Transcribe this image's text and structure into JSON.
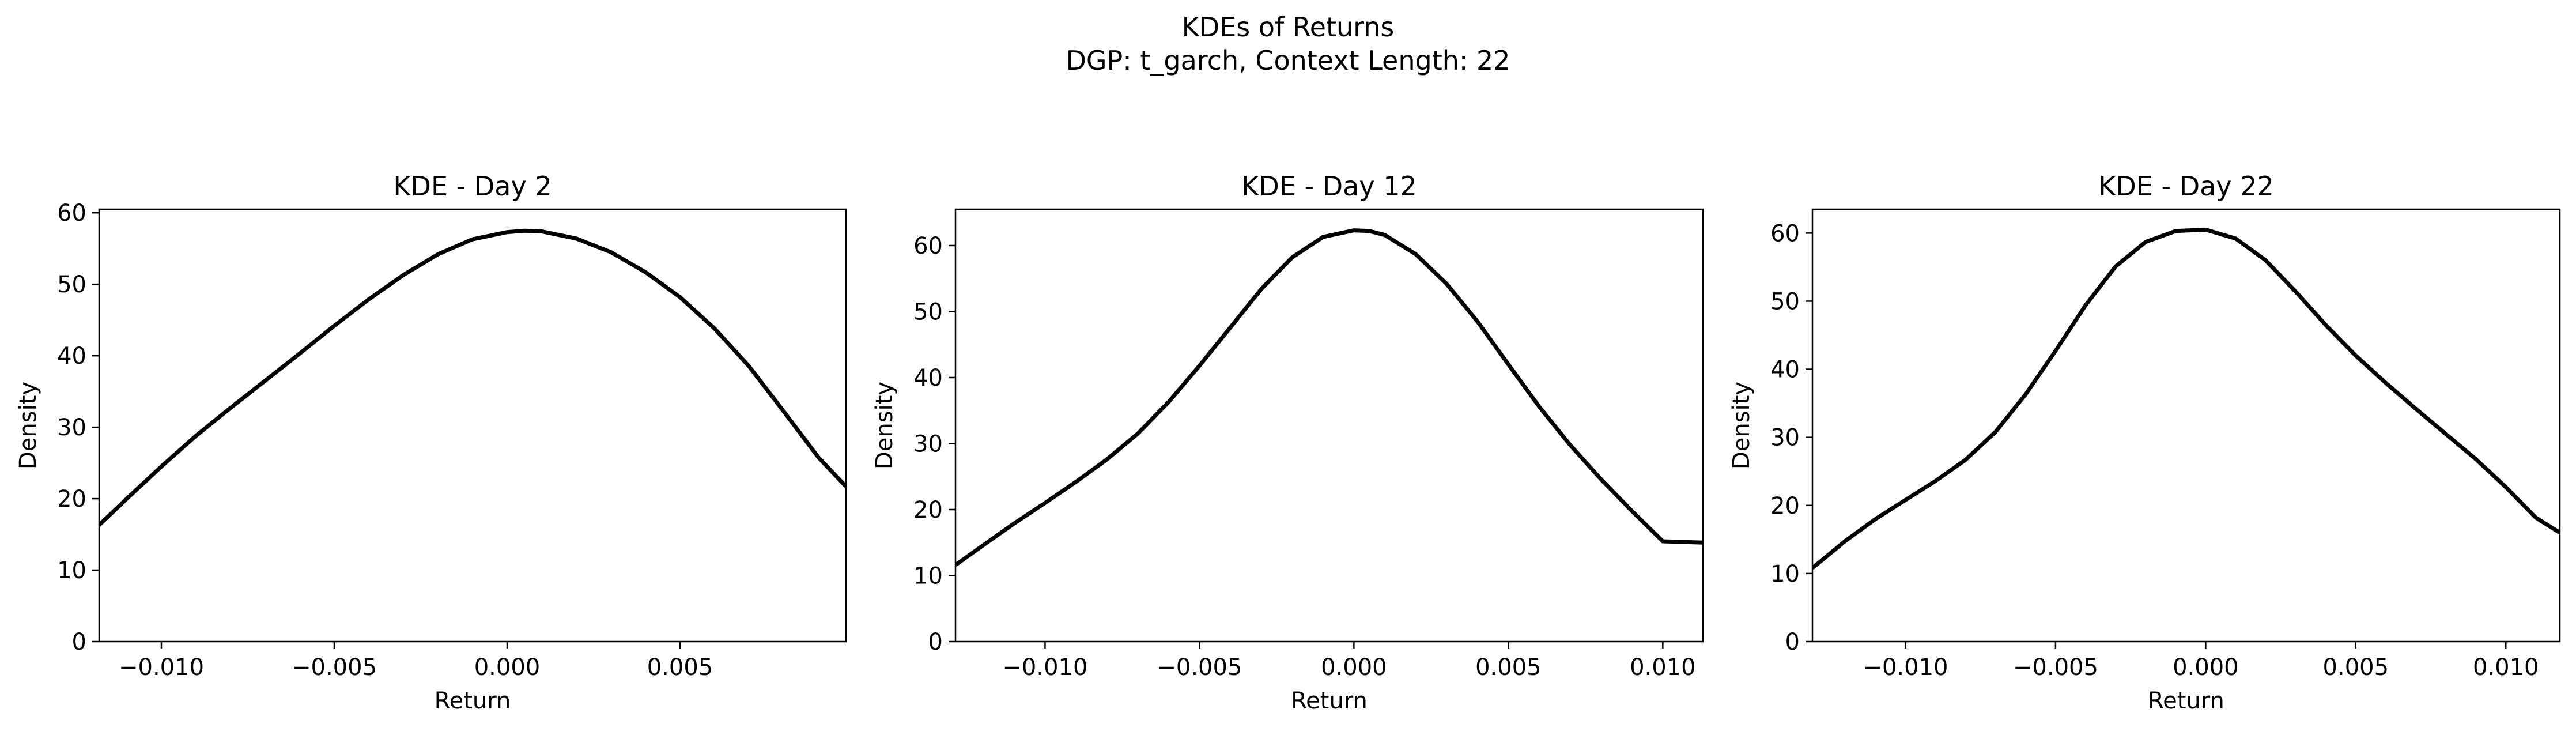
{
  "figure": {
    "suptitle_line1": "KDEs of Returns",
    "suptitle_line2": "DGP: t_garch, Context Length: 22"
  },
  "style": {
    "line_color": "#000000",
    "axis_color": "#000000",
    "background": "#ffffff"
  },
  "chart_data": [
    {
      "type": "line",
      "title": "KDE - Day 2",
      "xlabel": "Return",
      "ylabel": "Density",
      "xlim": [
        -0.0118,
        0.0098
      ],
      "ylim": [
        0,
        60.5
      ],
      "xticks": [
        -0.01,
        -0.005,
        0.0,
        0.005
      ],
      "xtick_labels": [
        "−0.010",
        "−0.005",
        "0.000",
        "0.005"
      ],
      "yticks": [
        0,
        10,
        20,
        30,
        40,
        50,
        60
      ],
      "ytick_labels": [
        "0",
        "10",
        "20",
        "30",
        "40",
        "50",
        "60"
      ],
      "grid": false,
      "legend": "none",
      "series": [
        {
          "x": [
            -0.0118,
            -0.011,
            -0.01,
            -0.009,
            -0.008,
            -0.007,
            -0.006,
            -0.005,
            -0.004,
            -0.003,
            -0.002,
            -0.001,
            0.0,
            0.0005,
            0.001,
            0.002,
            0.003,
            0.004,
            0.005,
            0.006,
            0.007,
            0.008,
            0.009,
            0.0098
          ],
          "values": [
            16.3,
            20.0,
            24.5,
            28.8,
            32.7,
            36.5,
            40.3,
            44.2,
            47.9,
            51.3,
            54.2,
            56.3,
            57.3,
            57.5,
            57.4,
            56.4,
            54.5,
            51.7,
            48.2,
            43.8,
            38.5,
            32.2,
            25.8,
            21.7
          ]
        }
      ]
    },
    {
      "type": "line",
      "title": "KDE - Day 12",
      "xlabel": "Return",
      "ylabel": "Density",
      "xlim": [
        -0.0129,
        0.0113
      ],
      "ylim": [
        0,
        65.5
      ],
      "xticks": [
        -0.01,
        -0.005,
        0.0,
        0.005,
        0.01
      ],
      "xtick_labels": [
        "−0.010",
        "−0.005",
        "0.000",
        "0.005",
        "0.010"
      ],
      "yticks": [
        0,
        10,
        20,
        30,
        40,
        50,
        60
      ],
      "ytick_labels": [
        "0",
        "10",
        "20",
        "30",
        "40",
        "50",
        "60"
      ],
      "grid": false,
      "legend": "none",
      "series": [
        {
          "x": [
            -0.0129,
            -0.012,
            -0.011,
            -0.01,
            -0.009,
            -0.008,
            -0.007,
            -0.006,
            -0.005,
            -0.004,
            -0.003,
            -0.002,
            -0.001,
            0.0,
            0.0005,
            0.001,
            0.002,
            0.003,
            0.004,
            0.005,
            0.006,
            0.007,
            0.008,
            0.009,
            0.01,
            0.0113
          ],
          "values": [
            11.6,
            14.6,
            17.9,
            21.0,
            24.2,
            27.6,
            31.5,
            36.3,
            41.8,
            47.6,
            53.4,
            58.2,
            61.3,
            62.3,
            62.2,
            61.6,
            58.7,
            54.2,
            48.5,
            42.0,
            35.6,
            29.8,
            24.6,
            19.8,
            15.2,
            15.0
          ]
        }
      ]
    },
    {
      "type": "line",
      "title": "KDE - Day 22",
      "xlabel": "Return",
      "ylabel": "Density",
      "xlim": [
        -0.0131,
        0.0118
      ],
      "ylim": [
        0,
        63.5
      ],
      "xticks": [
        -0.01,
        -0.005,
        0.0,
        0.005,
        0.01
      ],
      "xtick_labels": [
        "−0.010",
        "−0.005",
        "0.000",
        "0.005",
        "0.010"
      ],
      "yticks": [
        0,
        10,
        20,
        30,
        40,
        50,
        60
      ],
      "ytick_labels": [
        "0",
        "10",
        "20",
        "30",
        "40",
        "50",
        "60"
      ],
      "grid": false,
      "legend": "none",
      "series": [
        {
          "x": [
            -0.0131,
            -0.012,
            -0.011,
            -0.01,
            -0.009,
            -0.008,
            -0.007,
            -0.006,
            -0.005,
            -0.004,
            -0.003,
            -0.002,
            -0.001,
            0.0,
            0.001,
            0.002,
            0.003,
            0.004,
            0.005,
            0.006,
            0.007,
            0.008,
            0.009,
            0.01,
            0.011,
            0.0118
          ],
          "values": [
            10.8,
            14.8,
            18.0,
            20.8,
            23.6,
            26.7,
            30.8,
            36.3,
            42.7,
            49.4,
            55.1,
            58.7,
            60.3,
            60.5,
            59.2,
            56.0,
            51.4,
            46.5,
            42.0,
            38.0,
            34.2,
            30.5,
            26.8,
            22.7,
            18.2,
            16.0
          ]
        }
      ]
    }
  ]
}
